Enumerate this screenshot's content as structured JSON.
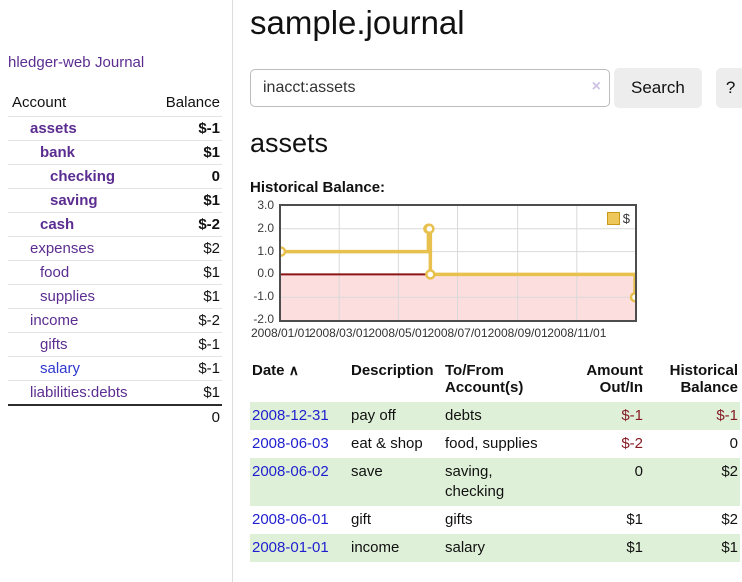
{
  "brand": "hledger-web",
  "nav": {
    "journal": "Journal"
  },
  "sidebar": {
    "col_account": "Account",
    "col_balance": "Balance",
    "accounts": [
      {
        "name": "assets",
        "balance": "$-1"
      },
      {
        "name": "bank",
        "balance": "$1"
      },
      {
        "name": "checking",
        "balance": "0"
      },
      {
        "name": "saving",
        "balance": "$1"
      },
      {
        "name": "cash",
        "balance": "$-2"
      },
      {
        "name": "expenses",
        "balance": "$2"
      },
      {
        "name": "food",
        "balance": "$1"
      },
      {
        "name": "supplies",
        "balance": "$1"
      },
      {
        "name": "income",
        "balance": "$-2"
      },
      {
        "name": "gifts",
        "balance": "$-1"
      },
      {
        "name": "salary",
        "balance": "$-1"
      },
      {
        "name": "liabilities:debts",
        "balance": "$1"
      }
    ],
    "total": "0"
  },
  "main": {
    "title": "sample.journal",
    "search": {
      "value": "inacct:assets",
      "clear_icon": "×",
      "search_button": "Search",
      "help_button": "?"
    },
    "account_heading": "assets",
    "chart_title": "Historical Balance:"
  },
  "chart_data": {
    "type": "line",
    "title": "Historical Balance:",
    "legend": {
      "label": "$",
      "position": "top-right"
    },
    "x_range": [
      "2008-01-01",
      "2008-12-31"
    ],
    "x_ticks": [
      "2008/01/01",
      "2008/03/01",
      "2008/05/01",
      "2008/07/01",
      "2008/09/01",
      "2008/11/01"
    ],
    "y_ticks": [
      "3.0",
      "2.0",
      "1.0",
      "0.0",
      "-1.0",
      "-2.0"
    ],
    "ylim": [
      -2,
      3
    ],
    "grid": true,
    "series": [
      {
        "name": "$",
        "style": "step",
        "points": [
          [
            "2008-01-01",
            1
          ],
          [
            "2008-06-01",
            2
          ],
          [
            "2008-06-02",
            2
          ],
          [
            "2008-06-03",
            0
          ],
          [
            "2008-12-31",
            -1
          ]
        ]
      }
    ],
    "colors": {
      "line": "#e8c04e",
      "marker_fill": "#ffffff",
      "zero_line": "#8b1414",
      "negative_region": "#fcdede",
      "grid": "#d9d9d9"
    }
  },
  "register": {
    "headers": {
      "date": "Date",
      "description": "Description",
      "account": "To/From Account(s)",
      "amount": "Amount Out/In",
      "balance": "Historical Balance"
    },
    "sort_icon": "∧",
    "rows": [
      {
        "date": "2008-12-31",
        "description": "pay off",
        "account": "debts",
        "amount": "$-1",
        "balance": "$-1"
      },
      {
        "date": "2008-06-03",
        "description": "eat & shop",
        "account": "food, supplies",
        "amount": "$-2",
        "balance": "0"
      },
      {
        "date": "2008-06-02",
        "description": "save",
        "account": "saving, checking",
        "amount": "0",
        "balance": "$2"
      },
      {
        "date": "2008-06-01",
        "description": "gift",
        "account": "gifts",
        "amount": "$1",
        "balance": "$2"
      },
      {
        "date": "2008-01-01",
        "description": "income",
        "account": "salary",
        "amount": "$1",
        "balance": "$1"
      }
    ]
  }
}
